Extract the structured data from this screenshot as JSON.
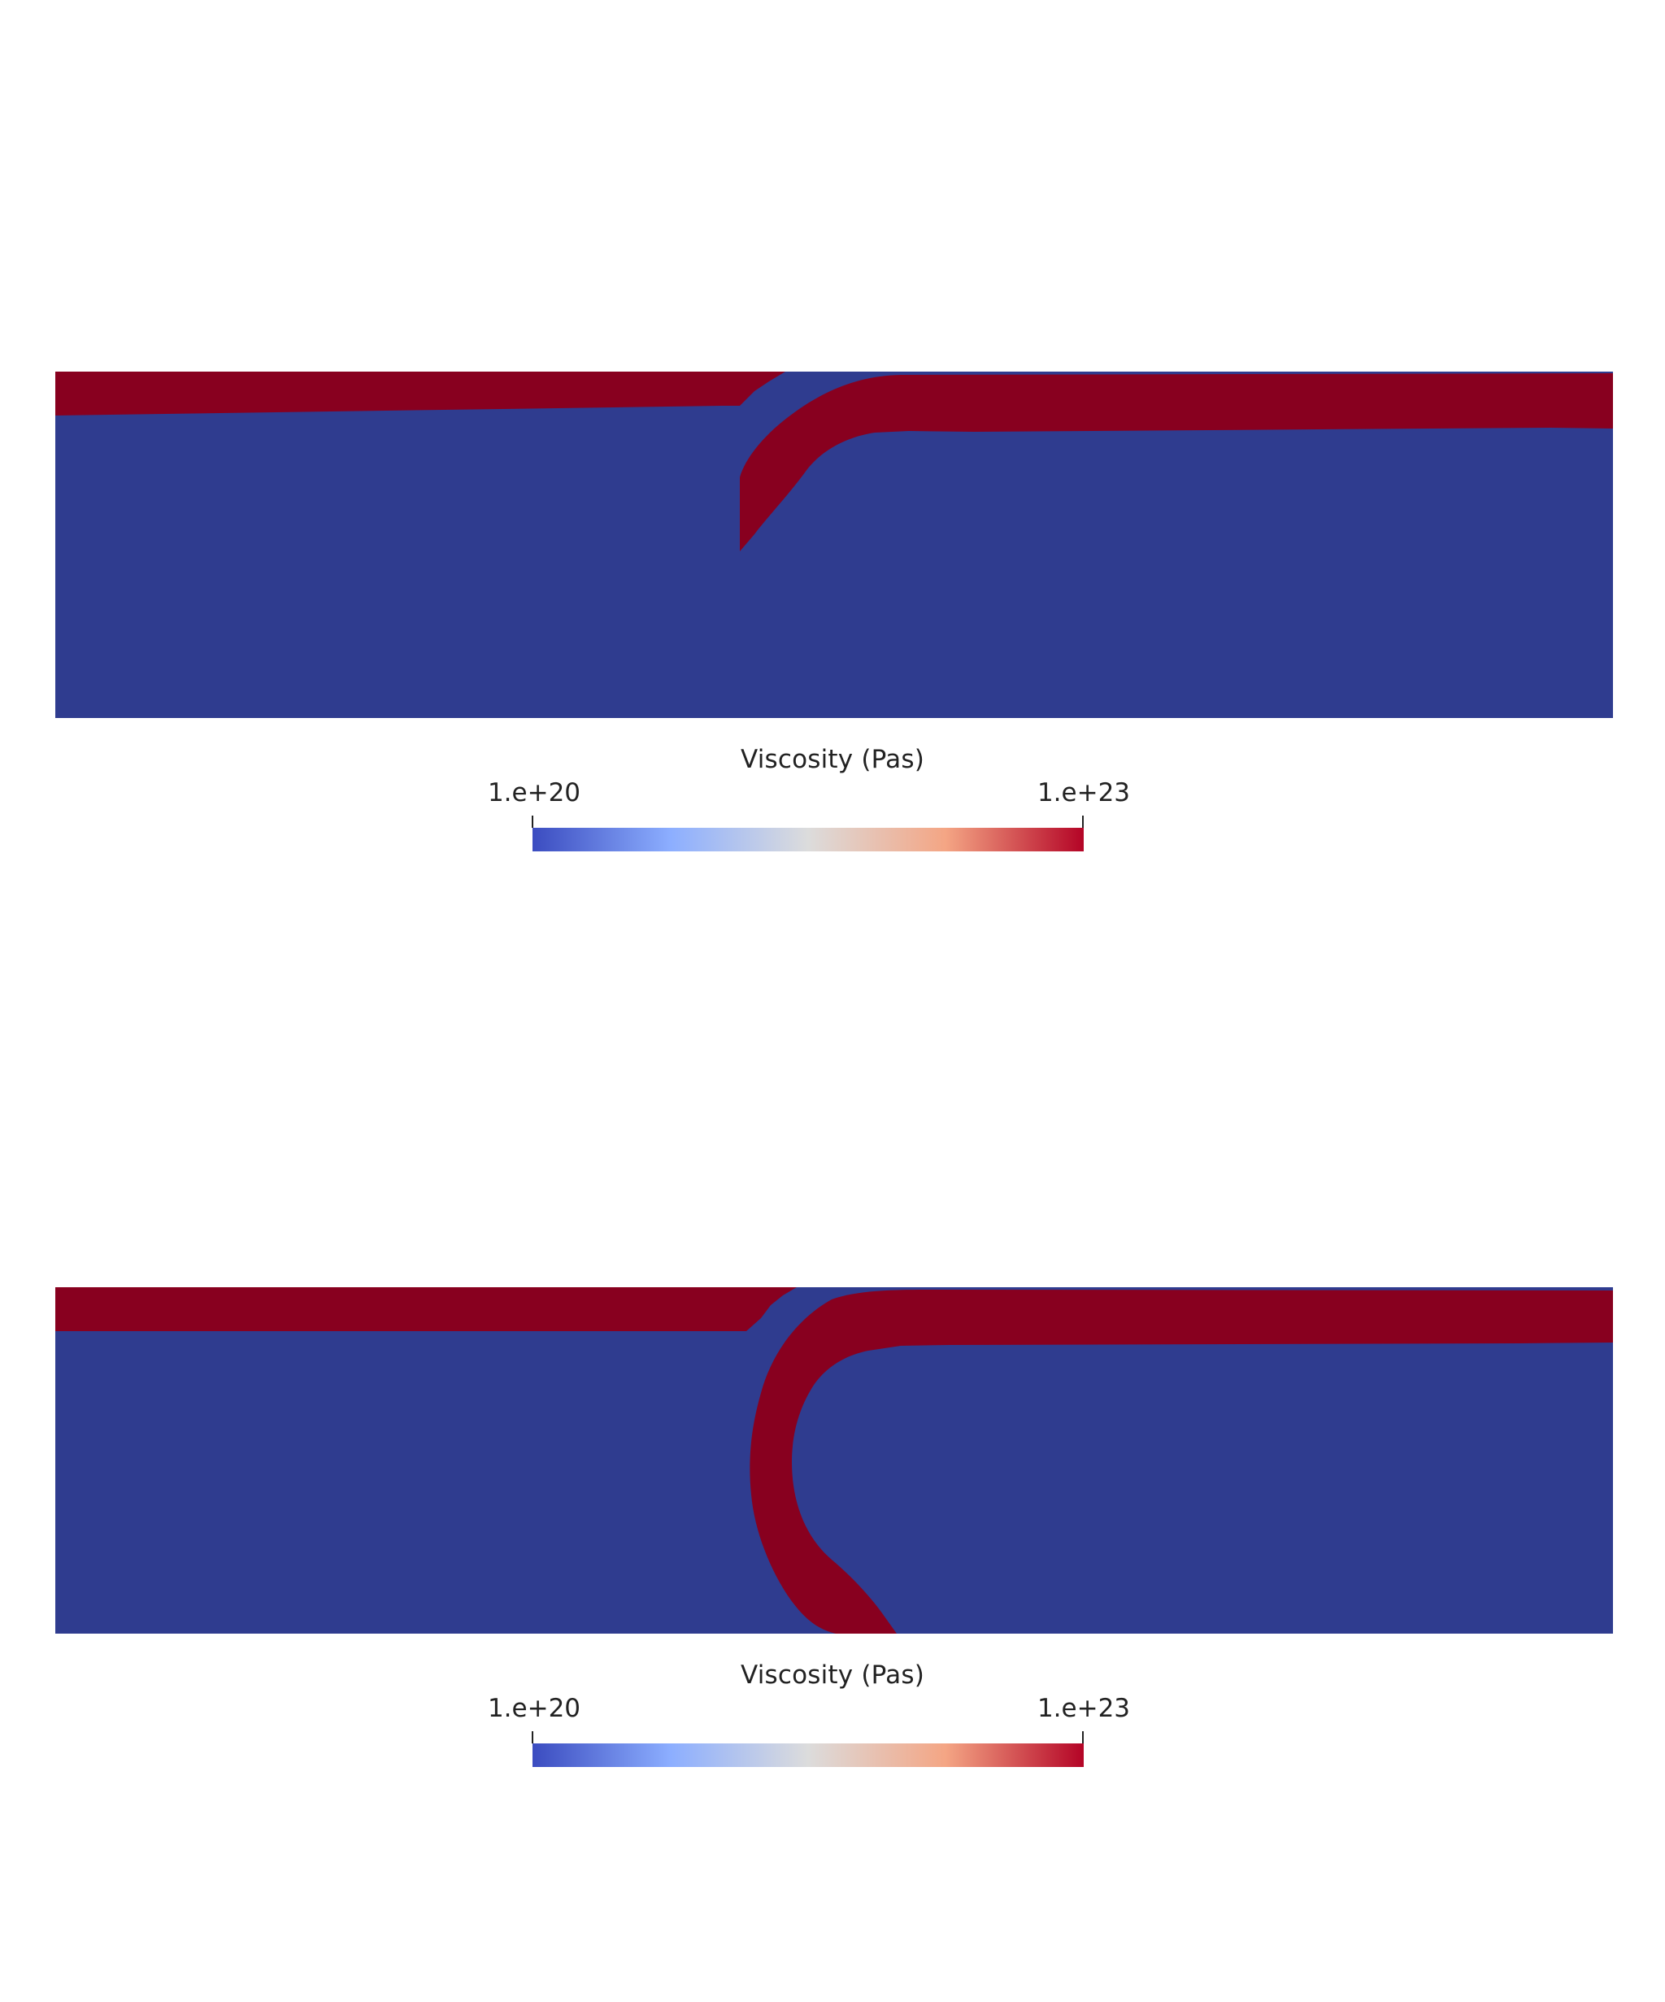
{
  "colors": {
    "low_viscosity": "#2f3c8f",
    "high_viscosity": "#88001f",
    "background": "#ffffff",
    "colormap": [
      "#3b4cc0",
      "#8caeff",
      "#dcdcdc",
      "#f4a584",
      "#b40426"
    ]
  },
  "panels": [
    {
      "colorbar": {
        "title": "Viscosity (Pas)",
        "min_label": "1.e+20",
        "max_label": "1.e+23"
      }
    },
    {
      "colorbar": {
        "title": "Viscosity (Pas)",
        "min_label": "1.e+20",
        "max_label": "1.e+23"
      }
    }
  ]
}
